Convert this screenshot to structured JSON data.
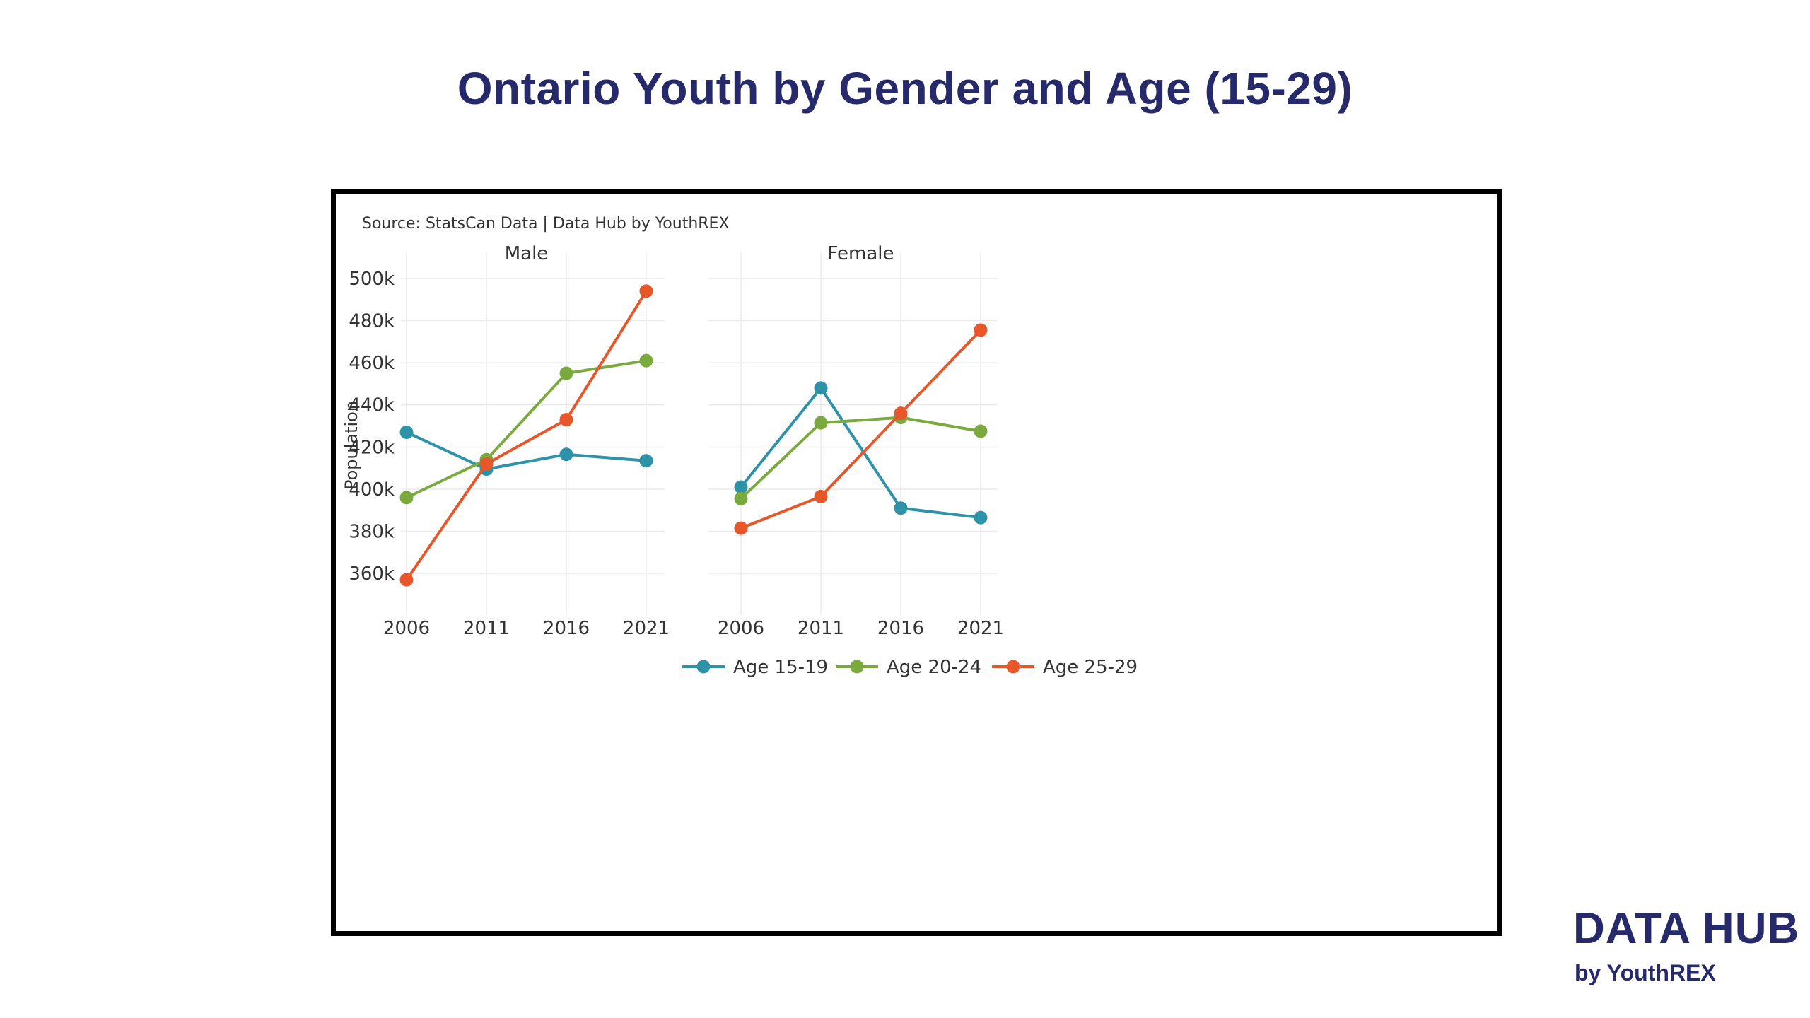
{
  "page": {
    "title": "Ontario Youth by Gender and Age (15-29)"
  },
  "chart": {
    "source": "Source: StatsCan Data | Data Hub by YouthREX"
  },
  "logo": {
    "main": "DATA HUB",
    "sub": "by YouthREX"
  },
  "colors": {
    "title": "#262a6b",
    "age_15_19": "#2e92a8",
    "age_20_24": "#7aaa3d",
    "age_25_29": "#e8572a",
    "grid": "#ebebeb"
  },
  "chart_data": {
    "type": "line",
    "ylabel": "Population",
    "xlabel": "",
    "x": [
      2006,
      2011,
      2016,
      2021
    ],
    "x_tick_labels": [
      "2006",
      "2011",
      "2016",
      "2021"
    ],
    "ylim": [
      352000,
      503000
    ],
    "y_ticks": [
      360000,
      380000,
      400000,
      420000,
      440000,
      460000,
      480000,
      500000
    ],
    "y_tick_labels": [
      "360k",
      "380k",
      "400k",
      "420k",
      "440k",
      "460k",
      "480k",
      "500k"
    ],
    "grid": true,
    "legend_position": "bottom",
    "panels": [
      {
        "name": "Male",
        "series": [
          {
            "name": "Age 15-19",
            "values": [
              427000,
              409500,
              416500,
              413500
            ]
          },
          {
            "name": "Age 20-24",
            "values": [
              396000,
              414000,
              455000,
              461000
            ]
          },
          {
            "name": "Age 25-29",
            "values": [
              357000,
              412000,
              433000,
              494000
            ]
          }
        ]
      },
      {
        "name": "Female",
        "series": [
          {
            "name": "Age 15-19",
            "values": [
              401000,
              448000,
              391000,
              386500
            ]
          },
          {
            "name": "Age 20-24",
            "values": [
              395500,
              431500,
              434000,
              427500
            ]
          },
          {
            "name": "Age 25-29",
            "values": [
              381500,
              396500,
              436000,
              475500
            ]
          }
        ]
      }
    ]
  }
}
